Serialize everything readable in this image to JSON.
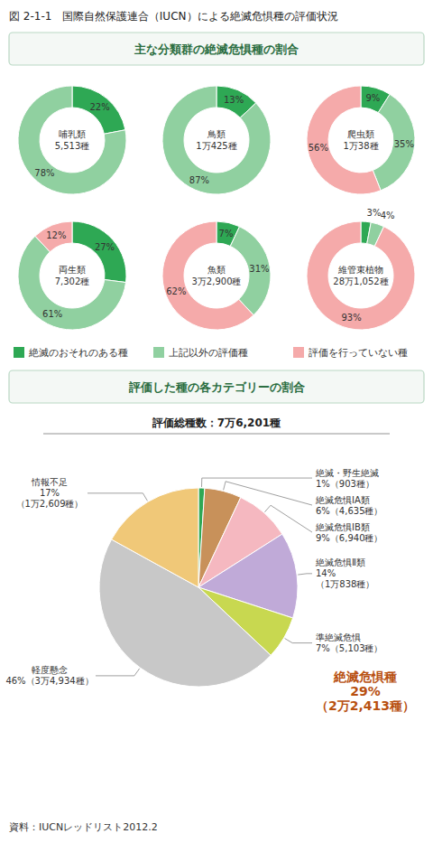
{
  "chart_data": [
    {
      "type": "donut",
      "title": "図 2-1-1   国際自然保護連合（IUCN）による絶滅危惧種の評価状況",
      "subtitle": "主な分類群の絶滅危惧種の割合",
      "categories": [
        "絶滅のおそれのある種",
        "上記以外の評価種",
        "評価を行っていない種"
      ],
      "colors": [
        "#2ea854",
        "#90d0a0",
        "#f5aaaa"
      ],
      "legend": "bottom",
      "data_labels": true,
      "series": [
        {
          "name": "哺乳類\n5,513種",
          "values": [
            22,
            78,
            0
          ],
          "value_labels": [
            "22%",
            "78%",
            null
          ]
        },
        {
          "name": "鳥類\n1万425種",
          "values": [
            13,
            87,
            0
          ],
          "value_labels": [
            "13%",
            "87%",
            null
          ]
        },
        {
          "name": "爬虫類\n1万38種",
          "values": [
            9,
            35,
            56
          ],
          "value_labels": [
            "9%",
            "35%",
            "56%"
          ]
        },
        {
          "name": "両生類\n7,302種",
          "values": [
            27,
            61,
            12
          ],
          "value_labels": [
            "27%",
            "61%",
            "12%"
          ]
        },
        {
          "name": "魚類\n3万2,900種",
          "values": [
            7,
            31,
            62
          ],
          "value_labels": [
            "7%",
            "31%",
            "62%"
          ]
        },
        {
          "name": "維管束植物\n28万1,052種",
          "values": [
            3,
            4,
            93
          ],
          "value_labels": [
            "3%",
            "4%",
            "93%"
          ]
        }
      ]
    },
    {
      "type": "pie",
      "title": "評価した種の各カテゴリーの割合",
      "subtitle": "評価総種数：7万6,201種",
      "categories": [
        "絶滅・野生絶滅",
        "絶滅危惧ⅠA類",
        "絶滅危惧ⅠB類",
        "絶滅危惧Ⅱ類",
        "準絶滅危惧",
        "軽度懸念",
        "情報不足"
      ],
      "values": [
        1,
        6,
        9,
        14,
        7,
        46,
        17
      ],
      "value_labels": [
        "1%（903種）",
        "6%（4,635種）",
        "9%（6,940種）",
        "14%\n（1万838種）",
        "7%（5,103種）",
        "46%（3万4,934種）",
        "17%\n（1万2,609種）"
      ],
      "colors": [
        "#2ea854",
        "#c8915a",
        "#f5b8c0",
        "#c0aad8",
        "#c8d850",
        "#c8c8c8",
        "#f0c878"
      ],
      "data_labels": true,
      "annotations": [
        {
          "text": "絶滅危惧種\n29%\n（2万2,413種）",
          "color": "#b85010"
        },
        {
          "text": "資料：IUCNレッドリスト2012.2"
        }
      ]
    }
  ]
}
